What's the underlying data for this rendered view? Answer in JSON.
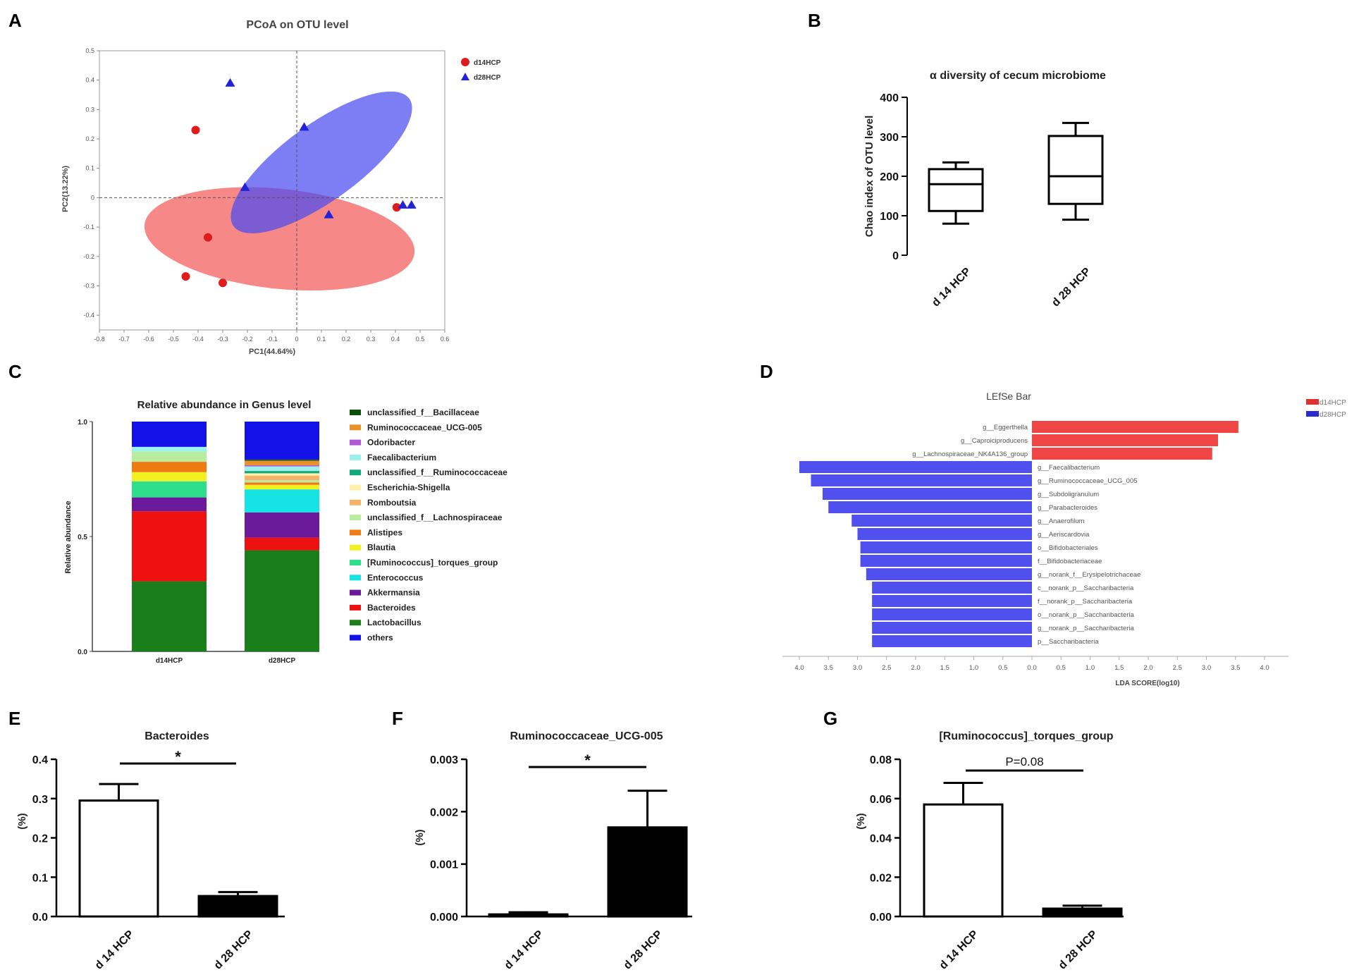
{
  "panels": {
    "A": "A",
    "B": "B",
    "C": "C",
    "D": "D",
    "E": "E",
    "F": "F",
    "G": "G"
  },
  "colors": {
    "red": "#e01b1b",
    "blue": "#2323d6",
    "red_ellipse": "#f25a5a",
    "blue_ellipse": "#4b4bf0",
    "lefse_red": "#f04545",
    "lefse_blue": "#5050ee"
  },
  "chart_data": [
    {
      "id": "A",
      "type": "scatter",
      "title": "PCoA on OTU level",
      "xlabel": "PC1(44.64%)",
      "ylabel": "PC2(13.22%)",
      "xlim": [
        -0.8,
        0.6
      ],
      "ylim": [
        -0.45,
        0.5
      ],
      "xticks": [
        "-0.8",
        "-0.7",
        "-0.6",
        "-0.5",
        "-0.4",
        "-0.3",
        "-0.2",
        "-0.1",
        "0",
        "0.1",
        "0.2",
        "0.3",
        "0.4",
        "0.5",
        "0.6"
      ],
      "yticks": [
        "0.5",
        "0.4",
        "0.3",
        "0.2",
        "0.1",
        "0",
        "-0.1",
        "-0.2",
        "-0.3",
        "-0.4"
      ],
      "legend_position": "top-right",
      "series": [
        {
          "name": "d14HCP",
          "marker": "circle",
          "color": "#e01b1b",
          "points": [
            [
              -0.41,
              0.23
            ],
            [
              -0.36,
              -0.135
            ],
            [
              -0.45,
              -0.268
            ],
            [
              -0.3,
              -0.29
            ],
            [
              0.405,
              -0.033
            ]
          ],
          "ellipse": {
            "center": [
              -0.07,
              -0.14
            ],
            "rx": 0.55,
            "ry": 0.17,
            "angle_deg": -6
          }
        },
        {
          "name": "d28HCP",
          "marker": "triangle",
          "color": "#2323d6",
          "points": [
            [
              -0.27,
              0.39
            ],
            [
              0.03,
              0.24
            ],
            [
              -0.21,
              0.035
            ],
            [
              0.13,
              -0.058
            ],
            [
              0.43,
              -0.025
            ],
            [
              0.465,
              -0.025
            ]
          ],
          "ellipse": {
            "center": [
              0.1,
              0.12
            ],
            "rx": 0.44,
            "ry": 0.13,
            "angle_deg": 36
          }
        }
      ]
    },
    {
      "id": "B",
      "type": "box",
      "title": "α diversity of cecum microbiome",
      "ylabel": "Chao index of OTU level",
      "ylim": [
        0,
        400
      ],
      "yticks": [
        "400",
        "300",
        "200",
        "100",
        "0"
      ],
      "categories": [
        "d 14 HCP",
        "d 28 HCP"
      ],
      "boxes": [
        {
          "min": 80,
          "q1": 112,
          "median": 180,
          "q3": 218,
          "max": 235
        },
        {
          "min": 90,
          "q1": 130,
          "median": 200,
          "q3": 302,
          "max": 335
        }
      ]
    },
    {
      "id": "C",
      "type": "stacked_bar",
      "title": "Relative abundance in Genus level",
      "ylabel": "Relative abundance",
      "ylim": [
        0,
        1
      ],
      "yticks": [
        "1.0",
        "0.5",
        "0.0"
      ],
      "categories": [
        "d14HCP",
        "d28HCP"
      ],
      "series": [
        {
          "name": "Lactobacillus",
          "color": "#1a7f1a",
          "values": [
            0.305,
            0.44
          ]
        },
        {
          "name": "Bacteroides",
          "color": "#ee1111",
          "values": [
            0.305,
            0.055
          ]
        },
        {
          "name": "Akkermansia",
          "color": "#6a1a9a",
          "values": [
            0.06,
            0.11
          ]
        },
        {
          "name": "Enterococcus",
          "color": "#16e3e3",
          "values": [
            0.0,
            0.1
          ]
        },
        {
          "name": "[Ruminococcus]_torques_group",
          "color": "#2ede8a",
          "values": [
            0.07,
            0.0
          ]
        },
        {
          "name": "Blautia",
          "color": "#f2ef22",
          "values": [
            0.04,
            0.02
          ]
        },
        {
          "name": "Alistipes",
          "color": "#f07a12",
          "values": [
            0.045,
            0.01
          ]
        },
        {
          "name": "unclassified_f__Lachnospiraceae",
          "color": "#b8eda0",
          "values": [
            0.045,
            0.01
          ]
        },
        {
          "name": "Romboutsia",
          "color": "#f7b26a",
          "values": [
            0.0,
            0.02
          ]
        },
        {
          "name": "Escherichia-Shigella",
          "color": "#fff2a8",
          "values": [
            0.0,
            0.01
          ]
        },
        {
          "name": "unclassified_f__Ruminococcaceae",
          "color": "#14a878",
          "values": [
            0.0,
            0.01
          ]
        },
        {
          "name": "Faecalibacterium",
          "color": "#9ef0ec",
          "values": [
            0.02,
            0.02
          ]
        },
        {
          "name": "Odoribacter",
          "color": "#b25ad6",
          "values": [
            0.0,
            0.005
          ]
        },
        {
          "name": "Ruminococcaceae_UCG-005",
          "color": "#e8912a",
          "values": [
            0.0,
            0.02
          ]
        },
        {
          "name": "unclassified_f__Bacillaceae",
          "color": "#0a4f0a",
          "values": [
            0.0,
            0.005
          ]
        },
        {
          "name": "others",
          "color": "#1111e8",
          "values": [
            0.11,
            0.165
          ]
        }
      ],
      "legend_order": [
        "unclassified_f__Bacillaceae",
        "Ruminococcaceae_UCG-005",
        "Odoribacter",
        "Faecalibacterium",
        "unclassified_f__Ruminococcaceae",
        "Escherichia-Shigella",
        "Romboutsia",
        "unclassified_f__Lachnospiraceae",
        "Alistipes",
        "Blautia",
        "[Ruminococcus]_torques_group",
        "Enterococcus",
        "Akkermansia",
        "Bacteroides",
        "Lactobacillus",
        "others"
      ],
      "legend_position": "right"
    },
    {
      "id": "D",
      "type": "horizontal_bar",
      "title": "LEfSe Bar",
      "xlabel": "LDA SCORE(log10)",
      "xticks": [
        "4.0",
        "3.5",
        "3.0",
        "2.5",
        "2.0",
        "1.5",
        "1.0",
        "0.5",
        "0.0",
        "0.5",
        "1.0",
        "1.5",
        "2.0",
        "2.5",
        "3.0",
        "3.5",
        "4.0"
      ],
      "xlim": [
        -4.0,
        4.0
      ],
      "legend_position": "top-right",
      "legend": [
        {
          "name": "d14HCP",
          "color": "#e03030"
        },
        {
          "name": "d28HCP",
          "color": "#2a2ad0"
        }
      ],
      "bars": [
        {
          "label": "g__Eggerthella",
          "group": "d14HCP",
          "value": 3.55
        },
        {
          "label": "g__Caproiciproducens",
          "group": "d14HCP",
          "value": 3.2
        },
        {
          "label": "g__Lachnospiraceae_NK4A136_group",
          "group": "d14HCP",
          "value": 3.1
        },
        {
          "label": "g__Faecalibacterium",
          "group": "d28HCP",
          "value": 4.0
        },
        {
          "label": "g__Ruminococcaceae_UCG_005",
          "group": "d28HCP",
          "value": 3.8
        },
        {
          "label": "g__Subdoligranulum",
          "group": "d28HCP",
          "value": 3.6
        },
        {
          "label": "g__Parabacteroides",
          "group": "d28HCP",
          "value": 3.5
        },
        {
          "label": "g__Anaerofilum",
          "group": "d28HCP",
          "value": 3.1
        },
        {
          "label": "g__Aeriscardovia",
          "group": "d28HCP",
          "value": 3.0
        },
        {
          "label": "o__Bifidobacteriales",
          "group": "d28HCP",
          "value": 2.95
        },
        {
          "label": "f__Bifidobacteriaceae",
          "group": "d28HCP",
          "value": 2.95
        },
        {
          "label": "g__norank_f__Erysipelotrichaceae",
          "group": "d28HCP",
          "value": 2.85
        },
        {
          "label": "c__norank_p__Saccharibacteria",
          "group": "d28HCP",
          "value": 2.75
        },
        {
          "label": "f__norank_p__Saccharibacteria",
          "group": "d28HCP",
          "value": 2.75
        },
        {
          "label": "o__norank_p__Saccharibacteria",
          "group": "d28HCP",
          "value": 2.75
        },
        {
          "label": "g__norank_p__Saccharibacteria",
          "group": "d28HCP",
          "value": 2.75
        },
        {
          "label": "p__Saccharibacteria",
          "group": "d28HCP",
          "value": 2.75
        }
      ]
    },
    {
      "id": "E",
      "type": "bar",
      "title": "Bacteroides",
      "ylabel": "(%)",
      "ylim": [
        0,
        0.4
      ],
      "yticks": [
        "0.4",
        "0.3",
        "0.2",
        "0.1",
        "0.0"
      ],
      "categories": [
        "d 14 HCP",
        "d 28 HCP"
      ],
      "values": [
        0.295,
        0.052
      ],
      "errors": [
        0.042,
        0.01
      ],
      "fills": [
        "white",
        "black"
      ],
      "significance": "*"
    },
    {
      "id": "F",
      "type": "bar",
      "title": "Ruminococcaceae_UCG-005",
      "ylabel": "(%)",
      "ylim": [
        0,
        0.003
      ],
      "yticks": [
        "0.003",
        "0.002",
        "0.001",
        "0.000"
      ],
      "categories": [
        "d 14 HCP",
        "d 28 HCP"
      ],
      "values": [
        4e-05,
        0.0017
      ],
      "errors": [
        4e-05,
        0.0007
      ],
      "fills": [
        "white",
        "black"
      ],
      "significance": "*"
    },
    {
      "id": "G",
      "type": "bar",
      "title": "[Ruminococcus]_torques_group",
      "ylabel": "(%)",
      "ylim": [
        0,
        0.08
      ],
      "yticks": [
        "0.08",
        "0.06",
        "0.04",
        "0.02",
        "0.00"
      ],
      "categories": [
        "d 14 HCP",
        "d 28 HCP"
      ],
      "values": [
        0.057,
        0.004
      ],
      "errors": [
        0.011,
        0.0015
      ],
      "fills": [
        "white",
        "black"
      ],
      "significance": "P=0.08"
    }
  ]
}
